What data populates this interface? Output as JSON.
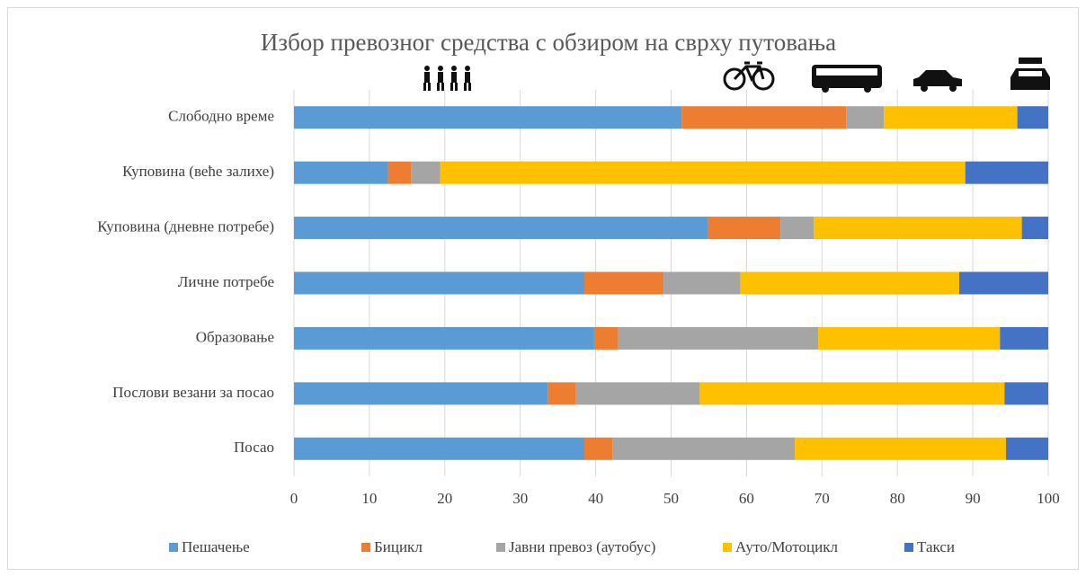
{
  "chart_data": {
    "type": "bar",
    "orientation": "horizontal",
    "stacked": true,
    "title": "Избор превозног средства с обзиром на сврху путовања",
    "categories": [
      "Слободно време",
      "Куповина (веће залихе)",
      "Куповина (дневне потребе)",
      "Личне потребе",
      "Образовање",
      "Послови везани за посао",
      "Посао"
    ],
    "series": [
      {
        "name": "Пешачење",
        "color": "#5b9bd5",
        "values": [
          51.4,
          12.5,
          54.9,
          38.5,
          39.8,
          33.7,
          38.5
        ]
      },
      {
        "name": "Бицикл",
        "color": "#ed7d31",
        "values": [
          21.8,
          3.0,
          9.6,
          10.5,
          3.2,
          3.7,
          3.7
        ]
      },
      {
        "name": "Јавни превоз (аутобус)",
        "color": "#a5a5a5",
        "values": [
          5.0,
          3.9,
          4.4,
          10.2,
          26.5,
          16.4,
          24.2
        ]
      },
      {
        "name": "Ауто/Мотоцикл",
        "color": "#ffc000",
        "values": [
          17.7,
          69.6,
          27.6,
          29.0,
          24.1,
          40.4,
          28.0
        ]
      },
      {
        "name": "Такси",
        "color": "#4472c4",
        "values": [
          4.1,
          11.0,
          3.5,
          11.8,
          6.4,
          5.8,
          5.6
        ]
      }
    ],
    "xlim": [
      0,
      100
    ],
    "xticks": [
      0,
      10,
      20,
      30,
      40,
      50,
      60,
      70,
      80,
      90,
      100
    ],
    "grid": true,
    "legend": "bottom"
  }
}
